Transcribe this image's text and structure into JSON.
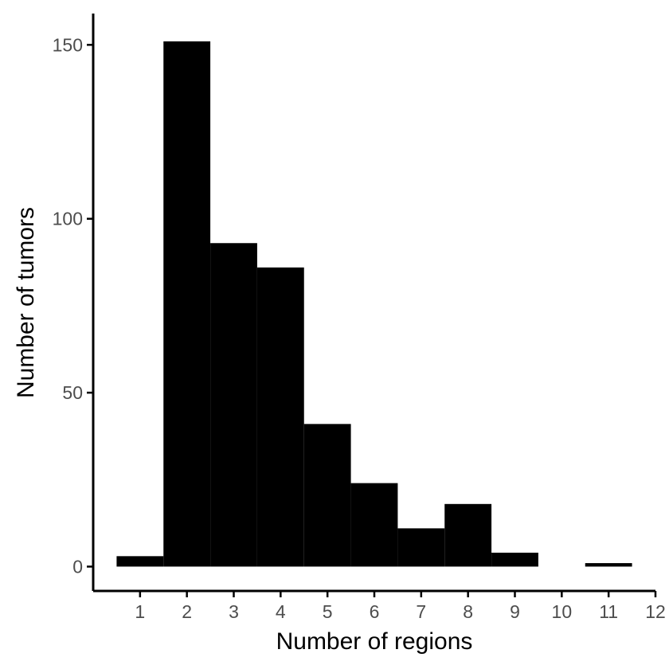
{
  "chart_data": {
    "type": "bar",
    "title": "",
    "xlabel": "Number of regions",
    "ylabel": "Number of tumors",
    "categories": [
      "1",
      "2",
      "3",
      "4",
      "5",
      "6",
      "7",
      "8",
      "9",
      "10",
      "11"
    ],
    "values": [
      3,
      151,
      93,
      86,
      41,
      24,
      11,
      18,
      4,
      0,
      1
    ],
    "x_ticks": [
      "1",
      "2",
      "3",
      "4",
      "5",
      "6",
      "7",
      "8",
      "9",
      "10",
      "11",
      "12"
    ],
    "y_ticks": [
      "0",
      "50",
      "100",
      "150"
    ],
    "xlim": [
      0,
      12
    ],
    "ylim": [
      -7,
      159
    ],
    "grid": false,
    "legend": "none",
    "bar_color": "#000000"
  }
}
